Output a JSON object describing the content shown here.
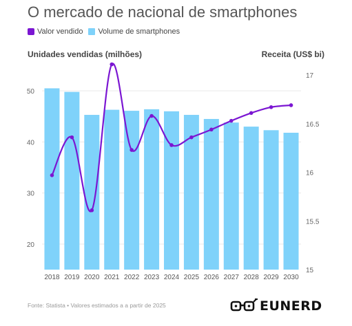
{
  "header": {
    "title": "O mercado de nacional de smartphones"
  },
  "colors": {
    "line": "#7b16d2",
    "bars": "#7fd2fa",
    "text": "#555555",
    "grid": "#e9e9e9"
  },
  "footer": {
    "source": "Fonte: Statista • Valores estimados a a partir de 2025",
    "brand": "EUNERD",
    "brand_icon": "glasses-logo-icon"
  },
  "chart_data": {
    "type": "bar",
    "categories": [
      "2018",
      "2019",
      "2020",
      "2021",
      "2022",
      "2023",
      "2024",
      "2025",
      "2026",
      "2027",
      "2028",
      "2029",
      "2030"
    ],
    "series": [
      {
        "name": "Volume de smartphones",
        "type": "bar",
        "axis": "left",
        "values": [
          50.5,
          49.8,
          45.3,
          46.3,
          46.1,
          46.4,
          46.0,
          45.3,
          44.5,
          43.8,
          43.0,
          42.3,
          41.8
        ]
      },
      {
        "name": "Valor vendido",
        "type": "line",
        "axis": "right",
        "smooth": true,
        "values": [
          15.97,
          16.36,
          15.61,
          17.11,
          16.23,
          16.58,
          16.28,
          16.36,
          16.44,
          16.53,
          16.61,
          16.67,
          16.69
        ]
      }
    ],
    "left_axis": {
      "label": "Unidades vendidas (milhões)",
      "ticks": [
        20,
        30,
        40,
        50
      ],
      "range": [
        15,
        55
      ]
    },
    "right_axis": {
      "label": "Receita (US$ bi)",
      "ticks": [
        "15",
        "15.5",
        "16",
        "16.5",
        "17"
      ],
      "range": [
        15,
        17.1
      ]
    },
    "grid": true,
    "legend_position": "top-left"
  }
}
